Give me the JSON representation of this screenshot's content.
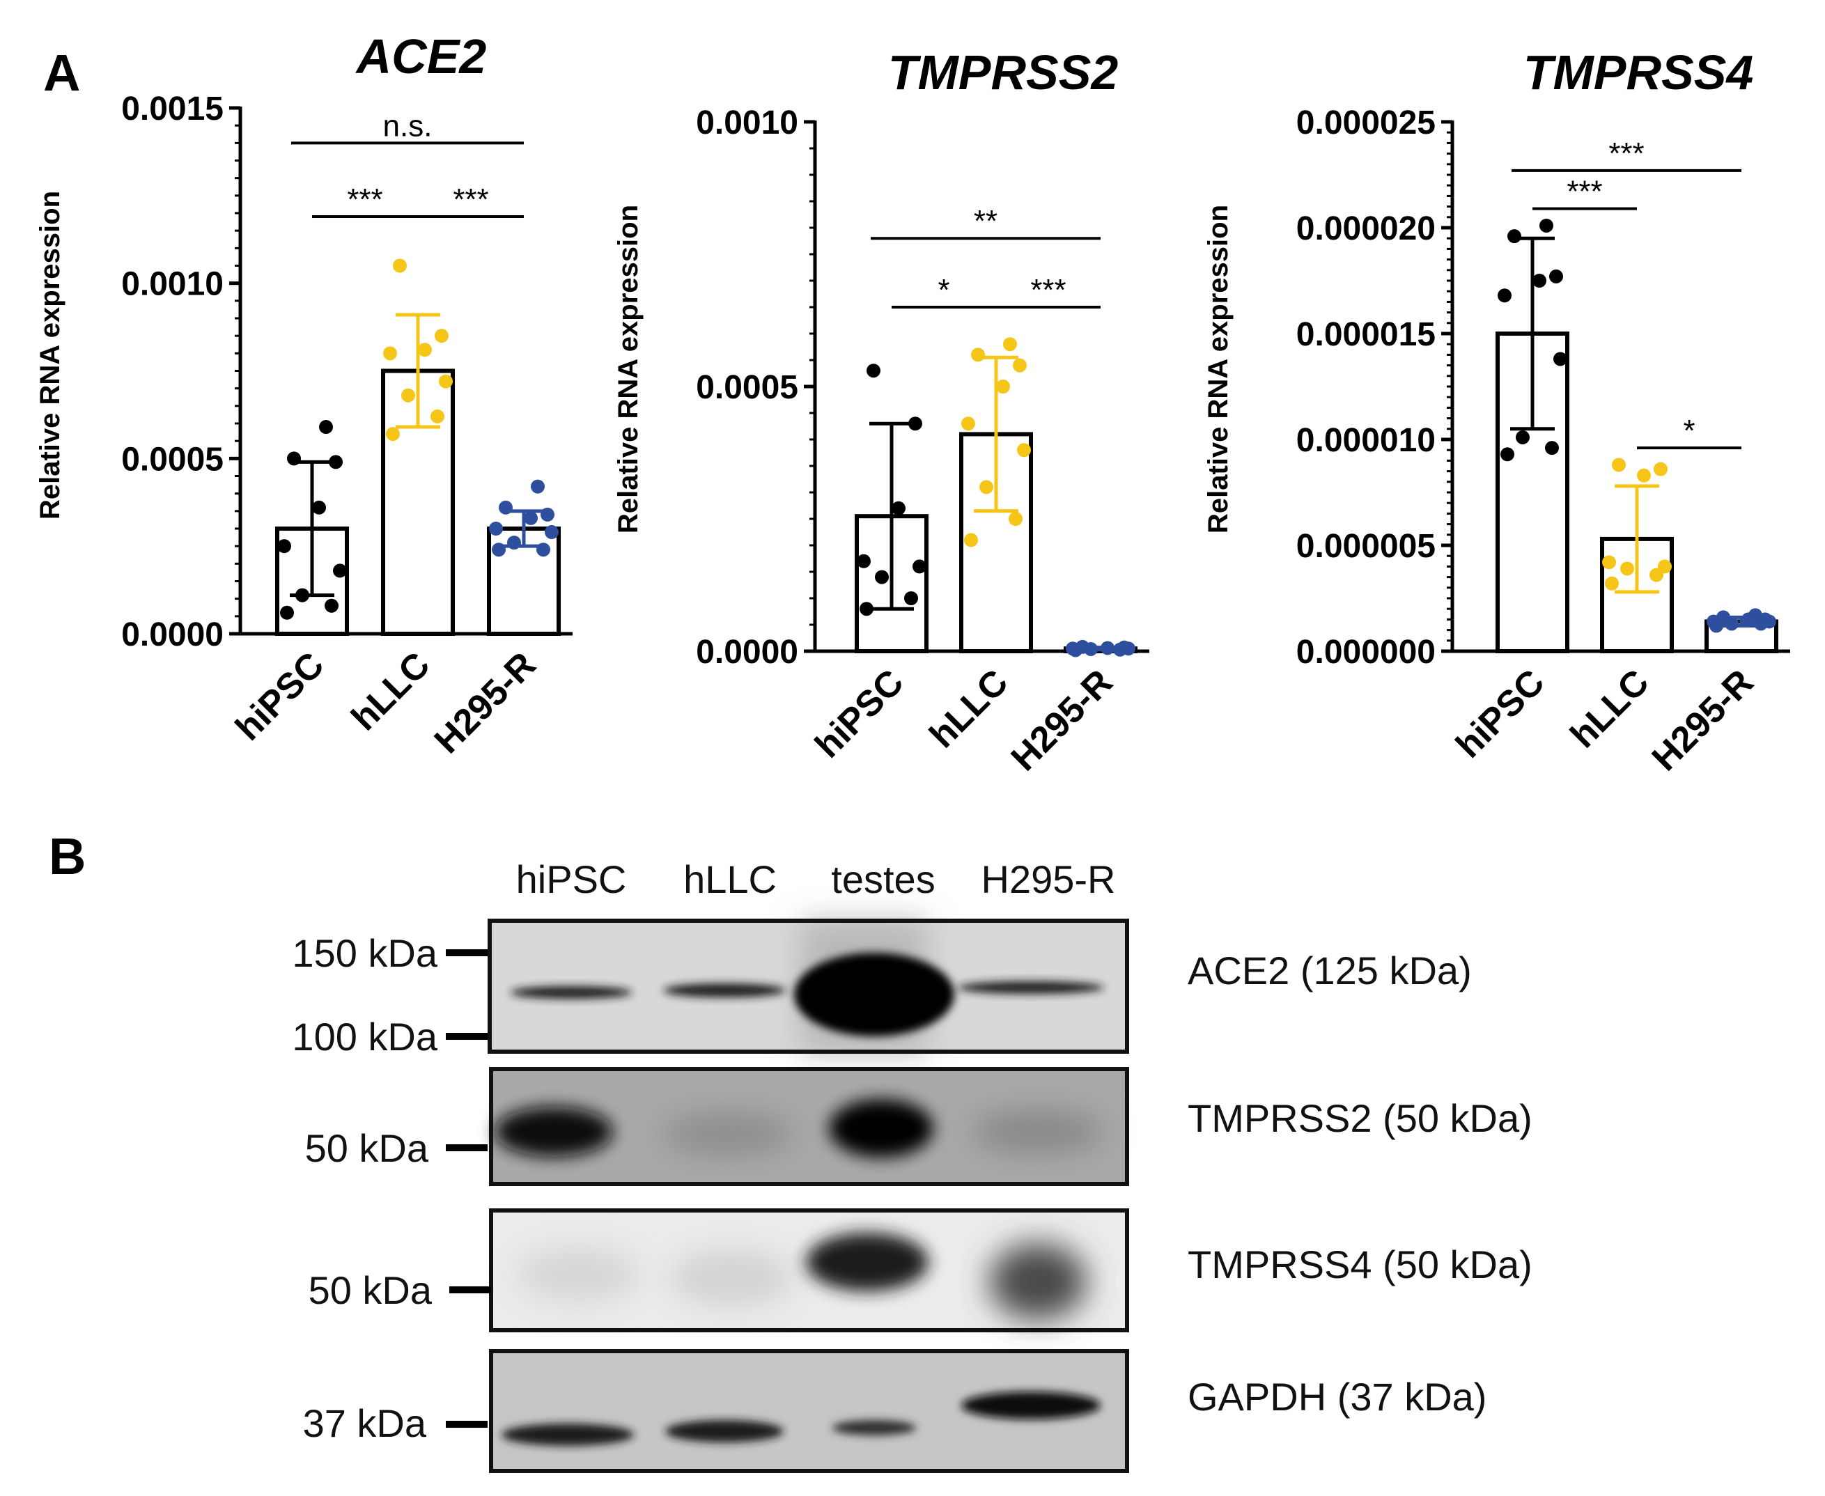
{
  "figure": {
    "panel_a_label": "A",
    "panel_b_label": "B"
  },
  "chart_data": [
    {
      "type": "bar",
      "title": "ACE2",
      "ylabel": "Relative RNA expression",
      "categories": [
        "hiPSC",
        "hLLC",
        "H295-R"
      ],
      "ylim": [
        0,
        0.0015
      ],
      "yticks": [
        "0.0000",
        "0.0005",
        "0.0010",
        "0.0015"
      ],
      "ytick_values": [
        0,
        0.0005,
        0.001,
        0.0015
      ],
      "colors": [
        "#000000",
        "#f5c518",
        "#2e4f9e"
      ],
      "means": [
        0.0003,
        0.00075,
        0.0003
      ],
      "sd": [
        0.00019,
        0.00016,
        5e-05
      ],
      "points": [
        [
          6e-05,
          8e-05,
          0.00011,
          0.00018,
          0.00025,
          0.00036,
          0.00049,
          0.0005,
          0.00059
        ],
        [
          0.00057,
          0.00062,
          0.00068,
          0.00072,
          0.0008,
          0.00081,
          0.00085,
          0.00105
        ],
        [
          0.00024,
          0.00024,
          0.00026,
          0.00029,
          0.0003,
          0.00033,
          0.00034,
          0.00036,
          0.00042
        ]
      ],
      "comparisons": [
        {
          "groups": [
            0,
            1
          ],
          "label": "***",
          "y": 0.00119
        },
        {
          "groups": [
            1,
            2
          ],
          "label": "***",
          "y": 0.00119
        },
        {
          "groups": [
            0,
            2
          ],
          "label": "n.s.",
          "y": 0.0014
        }
      ]
    },
    {
      "type": "bar",
      "title": "TMPRSS2",
      "ylabel": "Relative RNA expression",
      "categories": [
        "hiPSC",
        "hLLC",
        "H295-R"
      ],
      "ylim": [
        0,
        0.001
      ],
      "yticks": [
        "0.0000",
        "0.0005",
        "0.0010"
      ],
      "ytick_values": [
        0,
        0.0005,
        0.001
      ],
      "colors": [
        "#000000",
        "#f5c518",
        "#2e4f9e"
      ],
      "means": [
        0.000255,
        0.00041,
        5e-06
      ],
      "sd": [
        0.000175,
        0.000145,
        2e-06
      ],
      "points": [
        [
          8e-05,
          0.0001,
          0.00014,
          0.00016,
          0.00017,
          0.00027,
          0.00043,
          0.00053
        ],
        [
          0.00021,
          0.00025,
          0.00031,
          0.00038,
          0.00043,
          0.0005,
          0.00054,
          0.00056,
          0.00058
        ],
        [
          2e-06,
          3e-06,
          4e-06,
          5e-06,
          5e-06,
          6e-06,
          7e-06,
          8e-06
        ]
      ],
      "comparisons": [
        {
          "groups": [
            0,
            1
          ],
          "label": "*",
          "y": 0.00065
        },
        {
          "groups": [
            1,
            2
          ],
          "label": "***",
          "y": 0.00065
        },
        {
          "groups": [
            0,
            2
          ],
          "label": "**",
          "y": 0.00078
        }
      ]
    },
    {
      "type": "bar",
      "title": "TMPRSS4",
      "ylabel": "Relative RNA expression",
      "categories": [
        "hiPSC",
        "hLLC",
        "H295-R"
      ],
      "ylim": [
        0,
        2.5e-05
      ],
      "yticks": [
        "0.000000",
        "0.000005",
        "0.000010",
        "0.000015",
        "0.000020",
        "0.000025"
      ],
      "ytick_values": [
        0,
        5e-06,
        1e-05,
        1.5e-05,
        2e-05,
        2.5e-05
      ],
      "colors": [
        "#000000",
        "#f5c518",
        "#2e4f9e"
      ],
      "means": [
        1.5e-05,
        5.3e-06,
        1.4e-06
      ],
      "sd": [
        4.5e-06,
        2.5e-06,
        2e-07
      ],
      "points": [
        [
          9.3e-06,
          9.6e-06,
          1.01e-05,
          1.38e-05,
          1.68e-05,
          1.75e-05,
          1.77e-05,
          1.96e-05,
          2.01e-05
        ],
        [
          3.2e-06,
          3.6e-06,
          3.9e-06,
          4e-06,
          4.2e-06,
          8.3e-06,
          8.6e-06,
          8.8e-06
        ],
        [
          1.2e-06,
          1.3e-06,
          1.3e-06,
          1.4e-06,
          1.4e-06,
          1.5e-06,
          1.5e-06,
          1.6e-06,
          1.7e-06
        ]
      ],
      "comparisons": [
        {
          "groups": [
            0,
            1
          ],
          "label": "***",
          "y": 2.09e-05
        },
        {
          "groups": [
            0,
            2
          ],
          "label": "***",
          "y": 2.27e-05
        },
        {
          "groups": [
            1,
            2
          ],
          "label": "*",
          "y": 9.6e-06
        }
      ]
    }
  ],
  "western_blot": {
    "lanes": [
      "hiPSC",
      "hLLC",
      "testes",
      "H295-R"
    ],
    "blots": [
      {
        "protein_label": "ACE2 (125 kDa)",
        "markers": [
          "150 kDa",
          "100 kDa"
        ]
      },
      {
        "protein_label": "TMPRSS2 (50 kDa)",
        "markers": [
          "50 kDa"
        ]
      },
      {
        "protein_label": "TMPRSS4 (50 kDa)",
        "markers": [
          "50 kDa"
        ]
      },
      {
        "protein_label": "GAPDH (37 kDa)",
        "markers": [
          "37 kDa"
        ]
      }
    ]
  }
}
